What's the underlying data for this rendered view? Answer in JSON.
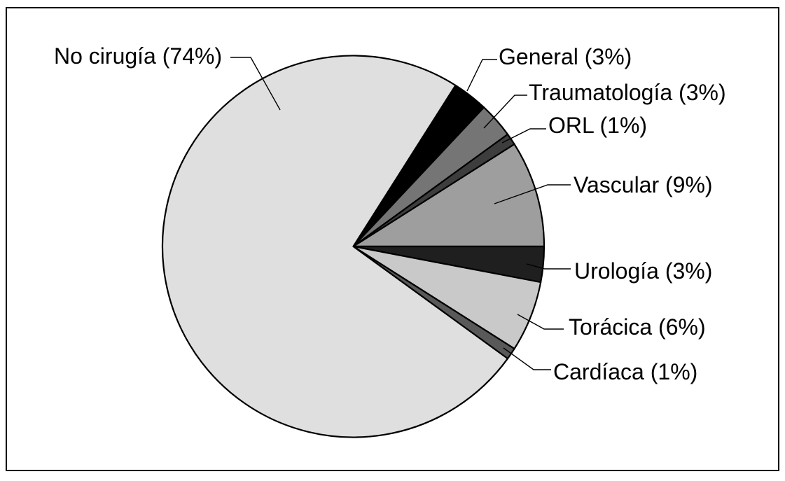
{
  "chart_data": {
    "type": "pie",
    "title": "",
    "legend_position": "callout-labels",
    "start_angle_deg": 57.6,
    "direction": "clockwise",
    "unit": "%",
    "slices": [
      {
        "key": "general",
        "label": "General",
        "pct": 3,
        "display": "General (3%)",
        "color": "#000000"
      },
      {
        "key": "traumatologia",
        "label": "Traumatología",
        "pct": 3,
        "display": "Traumatología (3%)",
        "color": "#757575"
      },
      {
        "key": "orl",
        "label": "ORL",
        "pct": 1,
        "display": "ORL (1%)",
        "color": "#3d3d3d"
      },
      {
        "key": "vascular",
        "label": "Vascular",
        "pct": 9,
        "display": "Vascular (9%)",
        "color": "#9e9e9e"
      },
      {
        "key": "urologia",
        "label": "Urología",
        "pct": 3,
        "display": "Urología (3%)",
        "color": "#1f1f1f"
      },
      {
        "key": "toracica",
        "label": "Torácica",
        "pct": 6,
        "display": "Torácica (6%)",
        "color": "#c9c9c9"
      },
      {
        "key": "cardiaca",
        "label": "Cardíaca",
        "pct": 1,
        "display": "Cardíaca (1%)",
        "color": "#595959"
      },
      {
        "key": "no-cirugia",
        "label": "No cirugía",
        "pct": 74,
        "display": "No cirugía (74%)",
        "color": "#dfdfdf"
      }
    ],
    "colors": {
      "outline": "#000000",
      "background": "#ffffff"
    }
  }
}
